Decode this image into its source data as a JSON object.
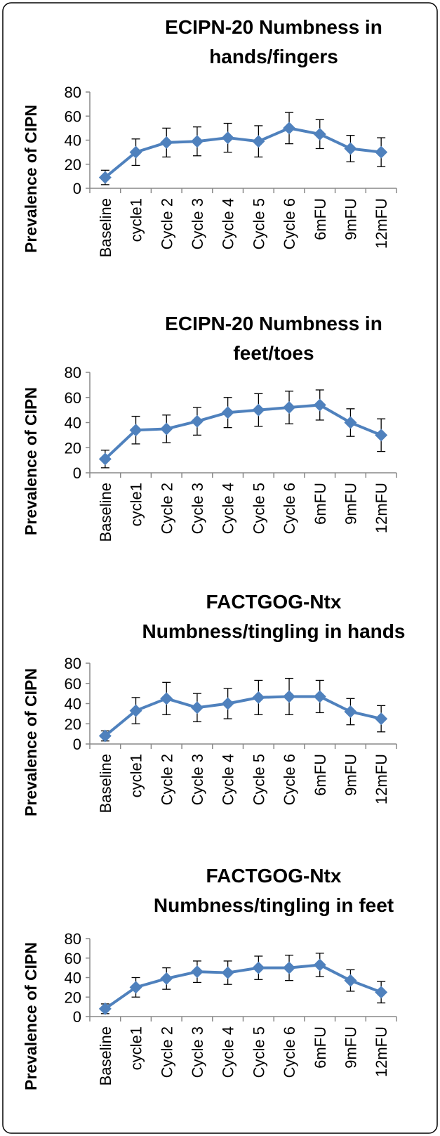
{
  "chart_data": [
    {
      "type": "line",
      "title": "ECIPN-20 Numbness in\nhands/fingers",
      "y_label": "Prevalence of CIPN",
      "categories": [
        "Baseline",
        "cycle1",
        "Cycle 2",
        "Cycle 3",
        "Cycle 4",
        "Cycle 5",
        "Cycle 6",
        "6mFU",
        "9mFU",
        "12mFU"
      ],
      "values": [
        9,
        30,
        38,
        39,
        42,
        39,
        50,
        45,
        33,
        30
      ],
      "errors": [
        6,
        11,
        12,
        12,
        12,
        13,
        13,
        12,
        11,
        12
      ],
      "color": "#4f81bd",
      "ylim": [
        0,
        80
      ],
      "yticks": [
        0,
        20,
        40,
        60,
        80
      ]
    },
    {
      "type": "line",
      "title": "ECIPN-20 Numbness in\nfeet/toes",
      "y_label": "Prevalence of CIPN",
      "categories": [
        "Baseline",
        "cycle1",
        "Cycle 2",
        "Cycle 3",
        "Cycle 4",
        "Cycle 5",
        "Cycle 6",
        "6mFU",
        "9mFU",
        "12mFU"
      ],
      "values": [
        11,
        34,
        35,
        41,
        48,
        50,
        52,
        54,
        40,
        30
      ],
      "errors": [
        7,
        11,
        11,
        11,
        12,
        13,
        13,
        12,
        11,
        13
      ],
      "color": "#4f81bd",
      "ylim": [
        0,
        80
      ],
      "yticks": [
        0,
        20,
        40,
        60,
        80
      ]
    },
    {
      "type": "line",
      "title": "FACTGOG-Ntx\nNumbness/tingling in hands",
      "y_label": "Prevalence of CIPN",
      "categories": [
        "Baseline",
        "cycle1",
        "Cycle 2",
        "Cycle 3",
        "Cycle 4",
        "Cycle 5",
        "Cycle 6",
        "6mFU",
        "9mFU",
        "12mFU"
      ],
      "values": [
        8,
        33,
        45,
        36,
        40,
        46,
        47,
        47,
        32,
        25
      ],
      "errors": [
        5,
        13,
        16,
        14,
        15,
        17,
        18,
        16,
        13,
        13
      ],
      "color": "#4f81bd",
      "ylim": [
        0,
        80
      ],
      "yticks": [
        0,
        20,
        40,
        60,
        80
      ]
    },
    {
      "type": "line",
      "title": "FACTGOG-Ntx\nNumbness/tingling in feet",
      "y_label": "Prevalence of CIPN",
      "categories": [
        "Baseline",
        "cycle1",
        "Cycle 2",
        "Cycle 3",
        "Cycle 4",
        "Cycle 5",
        "Cycle 6",
        "6mFU",
        "9mFU",
        "12mFU"
      ],
      "values": [
        8,
        30,
        39,
        46,
        45,
        50,
        50,
        53,
        37,
        25
      ],
      "errors": [
        5,
        10,
        11,
        11,
        12,
        12,
        13,
        12,
        11,
        11
      ],
      "color": "#4f81bd",
      "ylim": [
        0,
        80
      ],
      "yticks": [
        0,
        20,
        40,
        60,
        80
      ]
    }
  ]
}
